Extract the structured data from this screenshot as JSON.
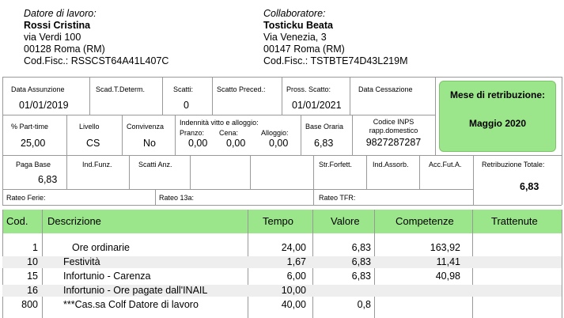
{
  "employer": {
    "role": "Datore di lavoro:",
    "name": "Rossi Cristina",
    "address": "via Verdi 100",
    "city": "00128 Roma (RM)",
    "cf": "Cod.Fisc.: RSSCST64A41L407C"
  },
  "worker": {
    "role": "Collaboratore:",
    "name": "Tosticku Beata",
    "address": "Via Venezia, 3",
    "city": "00147 Roma (RM)",
    "cf": "Cod.Fisc.: TSTBTE74D43L219M"
  },
  "row1": {
    "data_assunzione_label": "Data Assunzione",
    "data_assunzione": "01/01/2019",
    "scad_label": "Scad.T.Determ.",
    "scatti_label": "Scatti:",
    "scatti": "0",
    "scatto_preced_label": "Scatto Preced.:",
    "pross_scatto_label": "Pross. Scatto:",
    "pross_scatto": "01/01/2021",
    "cessazione_label": "Data Cessazione"
  },
  "row2": {
    "parttime_label": "% Part-time",
    "parttime": "25,00",
    "livello_label": "Livello",
    "livello": "CS",
    "convivenza_label": "Convivenza",
    "convivenza": "No",
    "indennita_label": "Indennità vitto e alloggio:",
    "pranzo_label": "Pranzo:",
    "pranzo": "0,00",
    "cena_label": "Cena:",
    "cena": "0,00",
    "alloggio_label": "Alloggio:",
    "alloggio": "0,00",
    "base_oraria_label": "Base Oraria",
    "base_oraria": "6,83",
    "inps_label1": "Codice INPS",
    "inps_label2": "rapp.domestico",
    "inps": "9827287287"
  },
  "mese": {
    "label": "Mese di retribuzione:",
    "value": "Maggio 2020"
  },
  "row3": {
    "paga_base_label": "Paga Base",
    "paga_base": "6,83",
    "ind_funz_label": "Ind.Funz.",
    "scatti_anz_label": "Scatti Anz.",
    "str_forfett_label": "Str.Forfett.",
    "ind_assorb_label": "Ind.Assorb.",
    "acc_fut_label": "Acc.Fut.A.",
    "retribuzione_label": "Retribuzione Totale:",
    "retribuzione": "6,83"
  },
  "row4": {
    "ferie_label": "Rateo Ferie:",
    "rateo13_label": "Rateo 13a:",
    "tfr_label": "Rateo TFR:"
  },
  "table": {
    "headers": {
      "cod": "Cod.",
      "descrizione": "Descrizione",
      "tempo": "Tempo",
      "valore": "Valore",
      "competenze": "Competenze",
      "trattenute": "Trattenute"
    },
    "rows": [
      {
        "cod": "1",
        "descrizione": "Ore ordinarie",
        "tempo": "24,00",
        "valore": "6,83",
        "competenze": "163,92",
        "trattenute": ""
      },
      {
        "cod": "10",
        "descrizione": "Festività",
        "tempo": "1,67",
        "valore": "6,83",
        "competenze": "11,41",
        "trattenute": ""
      },
      {
        "cod": "15",
        "descrizione": "Infortunio - Carenza",
        "tempo": "6,00",
        "valore": "6,83",
        "competenze": "40,98",
        "trattenute": ""
      },
      {
        "cod": "16",
        "descrizione": "Infortunio - Ore pagate dall'INAIL",
        "tempo": "10,00",
        "valore": "",
        "competenze": "",
        "trattenute": ""
      },
      {
        "cod": "800",
        "descrizione": "***Cas.sa Colf Datore di lavoro",
        "tempo": "40,00",
        "valore": "0,8",
        "competenze": "",
        "trattenute": ""
      }
    ]
  }
}
